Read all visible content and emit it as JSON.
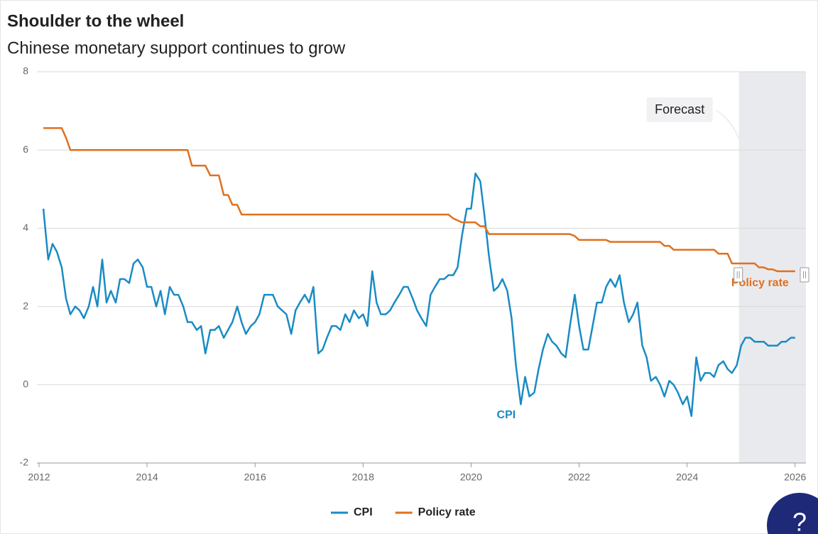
{
  "chart_data": {
    "type": "line",
    "title": "Shoulder to the wheel",
    "subtitle": "Chinese monetary support continues to grow",
    "x": [
      2012.08,
      2012.17,
      2012.25,
      2012.33,
      2012.42,
      2012.5,
      2012.58,
      2012.67,
      2012.75,
      2012.83,
      2012.92,
      2013,
      2013.08,
      2013.17,
      2013.25,
      2013.33,
      2013.42,
      2013.5,
      2013.58,
      2013.67,
      2013.75,
      2013.83,
      2013.92,
      2014,
      2014.08,
      2014.17,
      2014.25,
      2014.33,
      2014.42,
      2014.5,
      2014.58,
      2014.67,
      2014.75,
      2014.83,
      2014.92,
      2015,
      2015.08,
      2015.17,
      2015.25,
      2015.33,
      2015.42,
      2015.5,
      2015.58,
      2015.67,
      2015.75,
      2015.83,
      2015.92,
      2016,
      2016.08,
      2016.17,
      2016.25,
      2016.33,
      2016.42,
      2016.5,
      2016.58,
      2016.67,
      2016.75,
      2016.83,
      2016.92,
      2017,
      2017.08,
      2017.17,
      2017.25,
      2017.33,
      2017.42,
      2017.5,
      2017.58,
      2017.67,
      2017.75,
      2017.83,
      2017.92,
      2018,
      2018.08,
      2018.17,
      2018.25,
      2018.33,
      2018.42,
      2018.5,
      2018.58,
      2018.67,
      2018.75,
      2018.83,
      2018.92,
      2019,
      2019.08,
      2019.17,
      2019.25,
      2019.33,
      2019.42,
      2019.5,
      2019.58,
      2019.67,
      2019.75,
      2019.83,
      2019.92,
      2020,
      2020.08,
      2020.17,
      2020.25,
      2020.33,
      2020.42,
      2020.5,
      2020.58,
      2020.67,
      2020.75,
      2020.83,
      2020.92,
      2021,
      2021.08,
      2021.17,
      2021.25,
      2021.33,
      2021.42,
      2021.5,
      2021.58,
      2021.67,
      2021.75,
      2021.83,
      2021.92,
      2022,
      2022.08,
      2022.17,
      2022.25,
      2022.33,
      2022.42,
      2022.5,
      2022.58,
      2022.67,
      2022.75,
      2022.83,
      2022.92,
      2023,
      2023.08,
      2023.17,
      2023.25,
      2023.33,
      2023.42,
      2023.5,
      2023.58,
      2023.67,
      2023.75,
      2023.83,
      2023.92,
      2024,
      2024.08,
      2024.17,
      2024.25,
      2024.33,
      2024.42,
      2024.5,
      2024.58,
      2024.67,
      2024.75,
      2024.83,
      2024.92,
      2025,
      2025.08,
      2025.17,
      2025.25,
      2025.33,
      2025.42,
      2025.5,
      2025.58,
      2025.67,
      2025.75,
      2025.83,
      2025.92,
      2026
    ],
    "series": [
      {
        "name": "CPI",
        "color": "#1a8bc4",
        "label_pos": [
          2020.65,
          -0.78
        ],
        "values": [
          4.5,
          3.2,
          3.6,
          3.4,
          3.0,
          2.2,
          1.8,
          2.0,
          1.9,
          1.7,
          2.0,
          2.5,
          2.0,
          3.2,
          2.1,
          2.4,
          2.1,
          2.7,
          2.7,
          2.6,
          3.1,
          3.2,
          3.0,
          2.5,
          2.5,
          2.0,
          2.4,
          1.8,
          2.5,
          2.3,
          2.3,
          2.0,
          1.6,
          1.6,
          1.4,
          1.5,
          0.8,
          1.4,
          1.4,
          1.5,
          1.2,
          1.4,
          1.6,
          2.0,
          1.6,
          1.3,
          1.5,
          1.6,
          1.8,
          2.3,
          2.3,
          2.3,
          2.0,
          1.9,
          1.8,
          1.3,
          1.9,
          2.1,
          2.3,
          2.1,
          2.5,
          0.8,
          0.9,
          1.2,
          1.5,
          1.5,
          1.4,
          1.8,
          1.6,
          1.9,
          1.7,
          1.8,
          1.5,
          2.9,
          2.1,
          1.8,
          1.8,
          1.9,
          2.1,
          2.3,
          2.5,
          2.5,
          2.2,
          1.9,
          1.7,
          1.5,
          2.3,
          2.5,
          2.7,
          2.7,
          2.8,
          2.8,
          3.0,
          3.8,
          4.5,
          4.5,
          5.4,
          5.2,
          4.3,
          3.3,
          2.4,
          2.5,
          2.7,
          2.4,
          1.7,
          0.5,
          -0.5,
          0.2,
          -0.3,
          -0.2,
          0.4,
          0.9,
          1.3,
          1.1,
          1.0,
          0.8,
          0.7,
          1.5,
          2.3,
          1.5,
          0.9,
          0.9,
          1.5,
          2.1,
          2.1,
          2.5,
          2.7,
          2.5,
          2.8,
          2.1,
          1.6,
          1.8,
          2.1,
          1.0,
          0.7,
          0.1,
          0.2,
          0.0,
          -0.3,
          0.1,
          0.0,
          -0.2,
          -0.5,
          -0.3,
          -0.8,
          0.7,
          0.1,
          0.3,
          0.3,
          0.2,
          0.5,
          0.6,
          0.4,
          0.3,
          0.5,
          1.0,
          1.2,
          1.2,
          1.1,
          1.1,
          1.1,
          1.0,
          1.0,
          1.0,
          1.1,
          1.1,
          1.2,
          1.2
        ]
      },
      {
        "name": "Policy rate",
        "color": "#e0701e",
        "label_pos": [
          2025.35,
          2.6
        ],
        "values": [
          6.56,
          6.56,
          6.56,
          6.56,
          6.56,
          6.31,
          6.0,
          6.0,
          6.0,
          6.0,
          6.0,
          6.0,
          6.0,
          6.0,
          6.0,
          6.0,
          6.0,
          6.0,
          6.0,
          6.0,
          6.0,
          6.0,
          6.0,
          6.0,
          6.0,
          6.0,
          6.0,
          6.0,
          6.0,
          6.0,
          6.0,
          6.0,
          6.0,
          5.6,
          5.6,
          5.6,
          5.6,
          5.35,
          5.35,
          5.35,
          4.85,
          4.85,
          4.6,
          4.6,
          4.35,
          4.35,
          4.35,
          4.35,
          4.35,
          4.35,
          4.35,
          4.35,
          4.35,
          4.35,
          4.35,
          4.35,
          4.35,
          4.35,
          4.35,
          4.35,
          4.35,
          4.35,
          4.35,
          4.35,
          4.35,
          4.35,
          4.35,
          4.35,
          4.35,
          4.35,
          4.35,
          4.35,
          4.35,
          4.35,
          4.35,
          4.35,
          4.35,
          4.35,
          4.35,
          4.35,
          4.35,
          4.35,
          4.35,
          4.35,
          4.35,
          4.35,
          4.35,
          4.35,
          4.35,
          4.35,
          4.35,
          4.25,
          4.2,
          4.15,
          4.15,
          4.15,
          4.15,
          4.05,
          4.05,
          3.85,
          3.85,
          3.85,
          3.85,
          3.85,
          3.85,
          3.85,
          3.85,
          3.85,
          3.85,
          3.85,
          3.85,
          3.85,
          3.85,
          3.85,
          3.85,
          3.85,
          3.85,
          3.85,
          3.8,
          3.7,
          3.7,
          3.7,
          3.7,
          3.7,
          3.7,
          3.7,
          3.65,
          3.65,
          3.65,
          3.65,
          3.65,
          3.65,
          3.65,
          3.65,
          3.65,
          3.65,
          3.65,
          3.65,
          3.55,
          3.55,
          3.45,
          3.45,
          3.45,
          3.45,
          3.45,
          3.45,
          3.45,
          3.45,
          3.45,
          3.45,
          3.35,
          3.35,
          3.35,
          3.1,
          3.1,
          3.1,
          3.1,
          3.1,
          3.1,
          3.0,
          3.0,
          2.95,
          2.95,
          2.9,
          2.9,
          2.9,
          2.9,
          2.9
        ]
      }
    ],
    "xlim": [
      2012,
      2026.2
    ],
    "xticks": [
      2012,
      2014,
      2016,
      2018,
      2020,
      2022,
      2024,
      2026
    ],
    "ylim": [
      -2,
      8
    ],
    "yticks": [
      -2,
      0,
      2,
      4,
      6,
      8
    ],
    "grid": true,
    "forecast": {
      "label": "Forecast",
      "range": [
        2024.96,
        2026.2
      ]
    },
    "legend": "bottom"
  },
  "help_button": "?"
}
